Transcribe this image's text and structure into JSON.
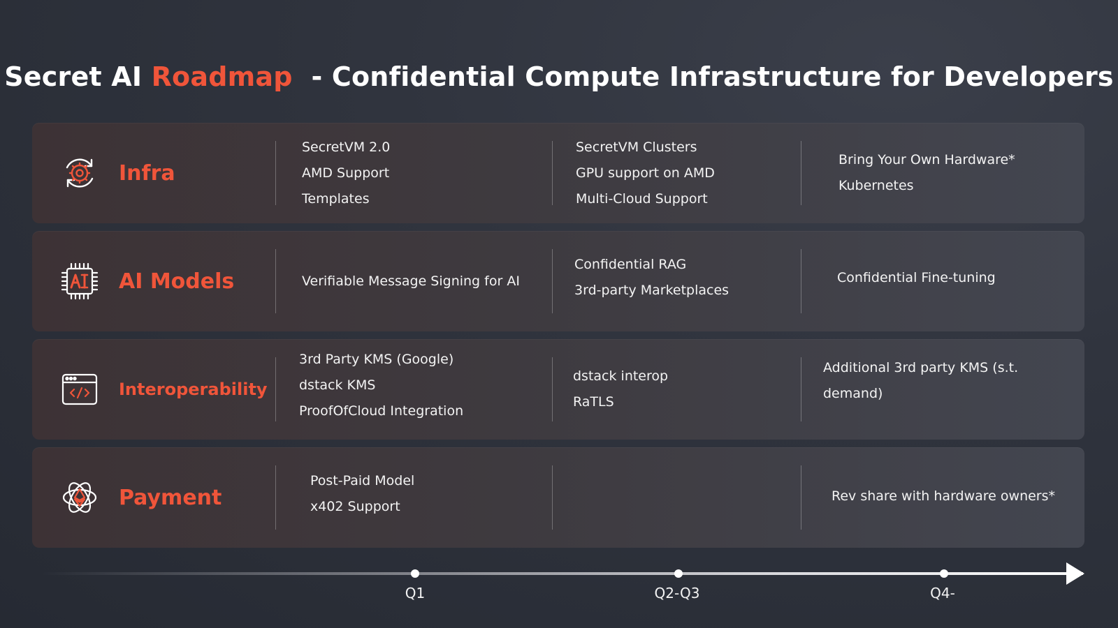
{
  "title": {
    "part1": "Secret AI ",
    "accent": "Roadmap",
    "part2": "  - Confidential Compute Infrastructure for Developers"
  },
  "colors": {
    "accent": "#f0553a",
    "text": "#ffffff"
  },
  "rows": [
    {
      "category": "Infra",
      "icon": "gear-cycle-icon",
      "q1": [
        "SecretVM 2.0",
        "AMD Support",
        "Templates"
      ],
      "q2q3": [
        "SecretVM Clusters",
        "GPU support on AMD",
        "Multi-Cloud Support"
      ],
      "q4": [
        "Bring Your Own Hardware*",
        "Kubernetes"
      ]
    },
    {
      "category": "AI Models",
      "icon": "ai-chip-icon",
      "q1": [
        "Verifiable Message Signing for AI"
      ],
      "q2q3": [
        "Confidential RAG",
        "3rd-party Marketplaces"
      ],
      "q4": [
        "Confidential Fine-tuning"
      ]
    },
    {
      "category": "Interoperability",
      "icon": "code-window-icon",
      "q1": [
        "3rd Party KMS (Google)",
        "dstack KMS",
        "ProofOfCloud Integration"
      ],
      "q2q3": [
        "dstack interop",
        "RaTLS"
      ],
      "q4": [
        "Additional 3rd party KMS (s.t.",
        "demand)"
      ]
    },
    {
      "category": "Payment",
      "icon": "ethereum-orbit-icon",
      "q1": [
        "Post-Paid Model",
        "x402 Support"
      ],
      "q2q3": [],
      "q4": [
        "Rev share with hardware owners*"
      ]
    }
  ],
  "timeline": {
    "labels": [
      "Q1",
      "Q2-Q3",
      "Q4-"
    ]
  }
}
